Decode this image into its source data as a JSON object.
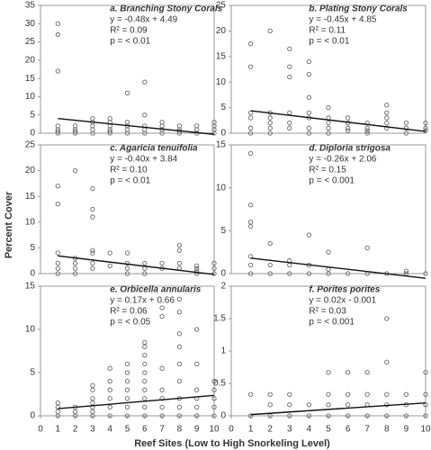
{
  "y_label": "Percent Cover",
  "x_label": "Reef Sites (Low to High Snorkeling Level)",
  "chart_data": [
    {
      "type": "scatter",
      "title": "a. Branching Stony Corals",
      "annotations": [
        "y = -0.48x + 4.49",
        "R² = 0.09",
        "p = < 0.01"
      ],
      "trendline": {
        "slope": -0.48,
        "intercept": 4.49
      },
      "color": "#666",
      "xlim": [
        0,
        10
      ],
      "ylim": [
        0,
        35
      ],
      "yticks": [
        0,
        5,
        10,
        15,
        20,
        25,
        30,
        35
      ],
      "x": [
        1,
        1,
        1,
        1,
        1,
        1,
        1,
        2,
        2,
        2,
        2,
        3,
        3,
        3,
        3,
        3,
        4,
        4,
        4,
        4,
        4,
        4,
        5,
        5,
        5,
        5,
        5,
        6,
        6,
        6,
        6,
        6,
        7,
        7,
        7,
        7,
        8,
        8,
        8,
        8,
        9,
        9,
        9,
        10,
        10,
        10,
        10
      ],
      "values": [
        30,
        27,
        17,
        2,
        1,
        0.5,
        0,
        2,
        1,
        0.5,
        0,
        4,
        3,
        2,
        1,
        0,
        4,
        3,
        2,
        1,
        0.5,
        0,
        11,
        3,
        2,
        1,
        0,
        14,
        5,
        2,
        1,
        0,
        3,
        2,
        1,
        0,
        2,
        1,
        0.5,
        0,
        2,
        1,
        0,
        3,
        2,
        1,
        0
      ]
    },
    {
      "type": "scatter",
      "title": "b. Plating Stony Corals",
      "annotations": [
        "y = -0.45x + 4.85",
        "R² = 0.11",
        "p = < 0.01"
      ],
      "trendline": {
        "slope": -0.45,
        "intercept": 4.85
      },
      "color": "#666",
      "xlim": [
        0,
        10
      ],
      "ylim": [
        0,
        25
      ],
      "yticks": [
        0,
        5,
        10,
        15,
        20,
        25
      ],
      "x": [
        1,
        1,
        1,
        1,
        1,
        1,
        2,
        2,
        2,
        2,
        2,
        2,
        3,
        3,
        3,
        3,
        3,
        3,
        4,
        4,
        4,
        4,
        4,
        4,
        4,
        5,
        5,
        5,
        5,
        5,
        6,
        6,
        6,
        6,
        7,
        7,
        7,
        7,
        8,
        8,
        8,
        8,
        8,
        9,
        9,
        9,
        10,
        10,
        10
      ],
      "values": [
        17.5,
        13,
        4,
        3,
        1,
        0,
        20,
        4,
        3,
        2,
        1,
        0,
        16.5,
        13,
        11,
        4,
        2,
        1,
        14,
        11.5,
        7,
        4,
        3,
        1,
        0,
        5,
        3,
        2,
        1,
        0,
        3,
        2,
        1,
        0.5,
        2,
        1,
        0.5,
        0,
        5.5,
        4,
        3,
        2,
        1,
        2,
        1,
        0,
        2,
        1,
        0.5
      ]
    },
    {
      "type": "scatter",
      "title": "c. Agaricia tenuifolia",
      "annotations": [
        "y = -0.40x + 3.84",
        "R² = 0.10",
        "p = < 0.01"
      ],
      "trendline": {
        "slope": -0.4,
        "intercept": 3.84
      },
      "color": "#666",
      "xlim": [
        0,
        10
      ],
      "ylim": [
        0,
        25
      ],
      "yticks": [
        0,
        5,
        10,
        15,
        20,
        25
      ],
      "x": [
        1,
        1,
        1,
        1,
        1,
        1,
        2,
        2,
        2,
        2,
        2,
        3,
        3,
        3,
        3,
        3,
        3,
        3,
        4,
        4,
        5,
        5,
        5,
        5,
        6,
        6,
        6,
        7,
        7,
        8,
        8,
        8,
        8,
        9,
        9,
        9,
        9,
        10,
        10,
        10
      ],
      "values": [
        17,
        13.5,
        4,
        2,
        1,
        0,
        20,
        3,
        2,
        1,
        0,
        16.5,
        12.5,
        11,
        4.5,
        4,
        2,
        1,
        4,
        1.5,
        4,
        2,
        1,
        0,
        2,
        1,
        0,
        2,
        1,
        5.5,
        4.5,
        2,
        1,
        1.5,
        1,
        0.5,
        0,
        2,
        1,
        0
      ]
    },
    {
      "type": "scatter",
      "title": "d. Diploria strigosa",
      "annotations": [
        "y = -0.26x + 2.06",
        "R² = 0.15",
        "p = < 0.001"
      ],
      "trendline": {
        "slope": -0.26,
        "intercept": 2.06
      },
      "color": "#666",
      "xlim": [
        0,
        10
      ],
      "ylim": [
        0,
        15
      ],
      "yticks": [
        0,
        5,
        10,
        15
      ],
      "x": [
        1,
        1,
        1,
        1,
        1,
        1,
        1,
        2,
        2,
        2,
        3,
        3,
        3,
        4,
        4,
        4,
        5,
        5,
        5,
        6,
        7,
        7,
        8,
        9,
        9,
        10
      ],
      "values": [
        14,
        8,
        6,
        5.5,
        2,
        1,
        0,
        3.5,
        1,
        0,
        1.5,
        1,
        0,
        4.5,
        1,
        0,
        2.5,
        0.5,
        0,
        0,
        3,
        0,
        0,
        0.3,
        0,
        0
      ]
    },
    {
      "type": "scatter",
      "title": "e. Orbicella annularis",
      "annotations": [
        "y = 0.17x + 0.66",
        "R² = 0.06",
        "p = < 0.05"
      ],
      "trendline": {
        "slope": 0.17,
        "intercept": 0.66
      },
      "color": "#666",
      "xlim": [
        0,
        10
      ],
      "ylim": [
        0,
        15
      ],
      "yticks": [
        0,
        5,
        10,
        15
      ],
      "xticks": [
        0,
        1,
        2,
        3,
        4,
        5,
        6,
        7,
        8,
        9,
        10
      ],
      "x": [
        1,
        1,
        1,
        1,
        2,
        2,
        2,
        3,
        3,
        3,
        3,
        3,
        3,
        3,
        4,
        4,
        4,
        4,
        4,
        4,
        5,
        5,
        5,
        5,
        5,
        5,
        5,
        6,
        6,
        6,
        6,
        6,
        6,
        6,
        6,
        6,
        6,
        7,
        7,
        7,
        7,
        7,
        7,
        7,
        8,
        8,
        8,
        8,
        8,
        8,
        8,
        8,
        8,
        9,
        9,
        9,
        9,
        9,
        9,
        10,
        10,
        10,
        10,
        10
      ],
      "values": [
        1.5,
        1,
        0.5,
        0,
        1,
        0.5,
        0,
        3.5,
        3,
        2,
        1.5,
        1,
        0.5,
        0,
        5.5,
        4,
        3,
        2,
        1,
        0,
        6,
        5,
        4,
        3,
        2,
        1,
        0,
        8.5,
        8,
        7,
        6,
        5,
        4,
        3,
        2,
        1,
        0,
        12.5,
        11.5,
        5.5,
        3,
        2,
        1,
        0,
        13.5,
        12,
        9.5,
        8,
        6,
        4,
        2,
        1,
        0,
        10,
        6,
        3,
        2,
        1,
        0,
        4,
        3,
        2,
        1,
        0
      ]
    },
    {
      "type": "scatter",
      "title": "f. Porites porites",
      "annotations": [
        "y = 0.02x - 0.001",
        "R² = 0.03",
        "p = < 0.001"
      ],
      "trendline": {
        "slope": 0.02,
        "intercept": -0.001
      },
      "color": "#666",
      "xlim": [
        0,
        10
      ],
      "ylim": [
        0,
        2
      ],
      "yticks": [
        0,
        0.5,
        1,
        1.5,
        2
      ],
      "xticks": [
        0,
        1,
        2,
        3,
        4,
        5,
        6,
        7,
        8,
        9,
        10
      ],
      "x": [
        1,
        1,
        2,
        2,
        2,
        3,
        3,
        3,
        4,
        4,
        5,
        5,
        5,
        5,
        6,
        6,
        6,
        6,
        7,
        7,
        7,
        7,
        8,
        8,
        8,
        8,
        8,
        9,
        9,
        9,
        10,
        10,
        10,
        10
      ],
      "values": [
        0.33,
        0,
        0.33,
        0.17,
        0,
        0.33,
        0.17,
        0,
        0.17,
        0,
        0.67,
        0.33,
        0.17,
        0,
        0.67,
        0.33,
        0.17,
        0,
        0.67,
        0.33,
        0.17,
        0,
        1.5,
        0.83,
        0.33,
        0.17,
        0,
        0.33,
        0.17,
        0,
        0.67,
        0.33,
        0.17,
        0
      ]
    }
  ]
}
